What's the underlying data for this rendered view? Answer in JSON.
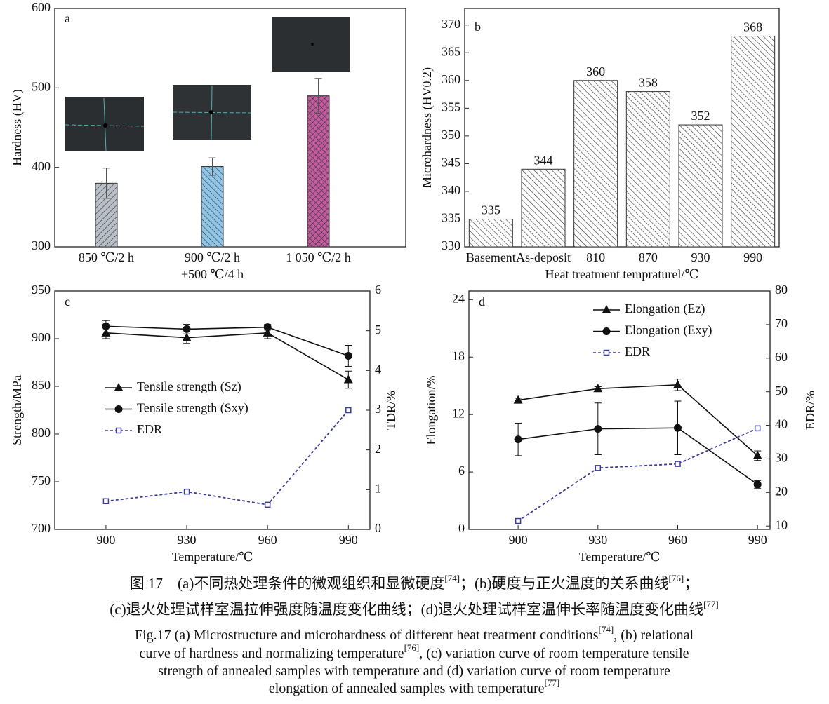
{
  "chart_data": [
    {
      "type": "bar",
      "panel": "a",
      "y_label": "Hardness (HV)",
      "categories": [
        [
          "850 ℃/2 h"
        ],
        [
          "900 ℃/2 h",
          "+500 ℃/4 h"
        ],
        [
          "1 050 ℃/2 h"
        ]
      ],
      "values": [
        380,
        401,
        490
      ],
      "errors": [
        19,
        11,
        22
      ],
      "colors": [
        "#b9bfc7",
        "#8fc6e8",
        "#c45ba0"
      ],
      "hatch": [
        "/",
        "\\",
        "x"
      ],
      "ylim": [
        300,
        600
      ],
      "yticks": [
        300,
        400,
        500,
        600
      ]
    },
    {
      "type": "bar",
      "panel": "b",
      "x_label": "Heat treatment tempraturel/℃",
      "y_label": "Microhardness (HV0.2)",
      "categories": [
        "Basement",
        "As-deposit",
        "810",
        "870",
        "930",
        "990"
      ],
      "values": [
        335,
        344,
        360,
        358,
        352,
        368
      ],
      "color": "#ffffff",
      "hatch": "\\",
      "ylim": [
        330,
        373
      ],
      "yticks": [
        330,
        335,
        340,
        345,
        350,
        355,
        360,
        365,
        370
      ]
    },
    {
      "type": "line",
      "panel": "c",
      "x_label": "Temperature/℃",
      "y_label": "Strength/MPa",
      "y2_label": "TDR/%",
      "x": [
        900,
        930,
        960,
        990
      ],
      "xlim": [
        881,
        998
      ],
      "xticks": [
        900,
        930,
        960,
        990
      ],
      "ylim": [
        700,
        950
      ],
      "yticks": [
        700,
        750,
        800,
        850,
        900,
        950
      ],
      "y2lim": [
        0,
        6
      ],
      "y2ticks": [
        0,
        1,
        2,
        3,
        4,
        5,
        6
      ],
      "legend": "center left",
      "series": [
        {
          "name": "Tensile strength (Sz)",
          "color": "#111111",
          "marker": "triangle",
          "values": [
            906,
            901,
            906,
            857
          ],
          "errors": [
            6,
            6,
            6,
            9
          ]
        },
        {
          "name": "Tensile strength (Sxy)",
          "color": "#111111",
          "marker": "circle",
          "values": [
            913,
            910,
            912,
            882
          ],
          "errors": [
            6,
            5,
            3,
            11
          ]
        },
        {
          "name": "EDR",
          "color": "#3a3a9c",
          "marker": "square",
          "dashed": true,
          "axis": "y2",
          "values": [
            0.71,
            0.95,
            0.62,
            3.0
          ]
        }
      ]
    },
    {
      "type": "line",
      "panel": "d",
      "x_label": "Temperature/℃",
      "y_label": "Elongation/%",
      "y2_label": "EDR/%",
      "x": [
        900,
        930,
        960,
        990
      ],
      "xlim": [
        881.5,
        994.7
      ],
      "xticks": [
        900,
        930,
        960,
        990
      ],
      "ylim": [
        0,
        24.9
      ],
      "yticks": [
        0,
        6,
        12,
        18,
        24
      ],
      "y2lim": [
        9,
        80
      ],
      "y2ticks": [
        10,
        20,
        30,
        40,
        50,
        60,
        70,
        80
      ],
      "legend": "upper center",
      "series": [
        {
          "name": "Elongation (Ez)",
          "color": "#111111",
          "marker": "triangle",
          "values": [
            13.5,
            14.7,
            15.1,
            7.7
          ],
          "errors": [
            0.2,
            0.2,
            0.6,
            0.5
          ]
        },
        {
          "name": "Elongation (Exy)",
          "color": "#111111",
          "marker": "circle",
          "values": [
            9.4,
            10.5,
            10.6,
            4.7
          ],
          "errors": [
            1.7,
            2.7,
            2.8,
            0.4
          ]
        },
        {
          "name": "EDR",
          "color": "#3a3a9c",
          "marker": "square",
          "dashed": true,
          "axis": "y2",
          "values": [
            11.5,
            27.3,
            28.5,
            39.1
          ]
        }
      ]
    }
  ],
  "caption": {
    "lines": [
      [
        {
          "text": "图 17　(a)不同热处理条件的微观组织和显微硬度"
        },
        {
          "sup": "[74]"
        },
        {
          "text": "；(b)硬度与正火温度的关系曲线"
        },
        {
          "sup": "[76]"
        },
        {
          "text": "；"
        }
      ],
      [
        {
          "text": "(c)退火处理试样室温拉伸强度随温度变化曲线；(d)退火处理试样室温伸长率随温度变化曲线"
        },
        {
          "sup": "[77]"
        }
      ],
      [
        {
          "text": "Fig.17 (a) Microstructure and microhardness of different heat treatment conditions"
        },
        {
          "sup": "[74]"
        },
        {
          "text": ", (b) relational"
        }
      ],
      [
        {
          "text": "curve of hardness and normalizing temperature"
        },
        {
          "sup": "[76]"
        },
        {
          "text": ", (c) variation curve of room temperature tensile"
        }
      ],
      [
        {
          "text": "strength of annealed samples with temperature and (d) variation curve of room temperature"
        }
      ],
      [
        {
          "text": "elongation of annealed samples with temperature"
        },
        {
          "sup": "[77]"
        }
      ]
    ]
  }
}
